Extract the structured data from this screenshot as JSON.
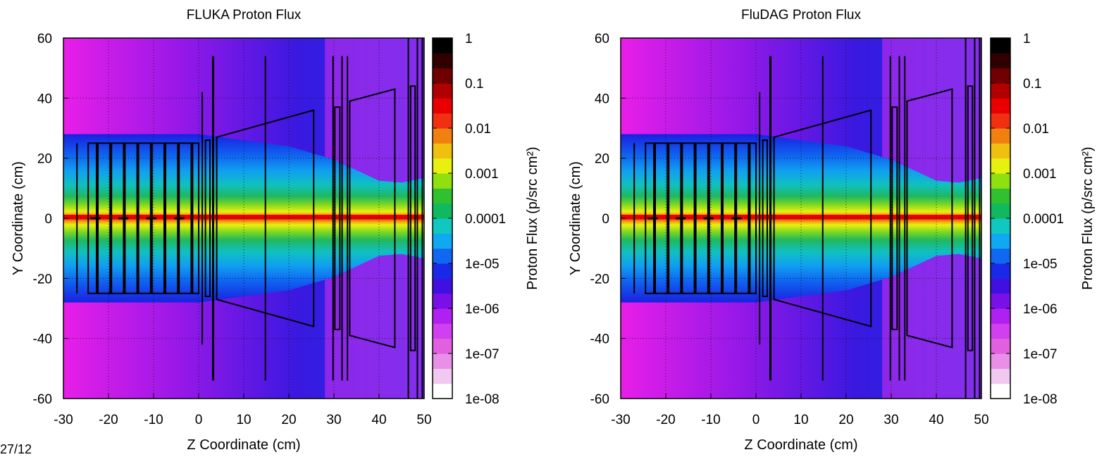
{
  "colors": {
    "scale": [
      "#ffffff",
      "#f0c8f0",
      "#e890e8",
      "#e060e0",
      "#d040f0",
      "#b020f0",
      "#7a10e8",
      "#4010e0",
      "#1a28e8",
      "#1068f0",
      "#10a8f0",
      "#10c8c0",
      "#10b860",
      "#30c030",
      "#90e010",
      "#e8f010",
      "#f0c010",
      "#f08010",
      "#f03010",
      "#e80000",
      "#b00000",
      "#700000",
      "#300000",
      "#000000"
    ]
  },
  "chart_data": [
    {
      "type": "heatmap",
      "title": "FLUKA Proton Flux",
      "xlabel": "Z Coordinate (cm)",
      "ylabel": "Y Coordinate (cm)",
      "colorbar_label": "Proton Flux (p/src cm²)",
      "xlim": [
        -30,
        50
      ],
      "ylim": [
        -60,
        60
      ],
      "xticks": [
        "-30",
        "-20",
        "-10",
        "0",
        "10",
        "20",
        "30",
        "40",
        "50"
      ],
      "yticks": [
        "60",
        "40",
        "20",
        "0",
        "-20",
        "-40",
        "-60"
      ],
      "colorbar_ticks": [
        "1",
        "0.1",
        "0.01",
        "0.001",
        "0.0001",
        "1e-05",
        "1e-06",
        "1e-07",
        "1e-08"
      ],
      "colorbar_range": [
        1e-08,
        1
      ],
      "colorbar_scale": "log",
      "grid": true
    },
    {
      "type": "heatmap",
      "title": "FluDAG Proton Flux",
      "xlabel": "Z Coordinate (cm)",
      "ylabel": "Y Coordinate (cm)",
      "colorbar_label": "Proton Flux (p/src cm²)",
      "xlim": [
        -30,
        50
      ],
      "ylim": [
        -60,
        60
      ],
      "xticks": [
        "-30",
        "-20",
        "-10",
        "0",
        "10",
        "20",
        "30",
        "40",
        "50"
      ],
      "yticks": [
        "60",
        "40",
        "20",
        "0",
        "-20",
        "-40",
        "-60"
      ],
      "colorbar_ticks": [
        "1",
        "0.1",
        "0.01",
        "0.001",
        "0.0001",
        "1e-05",
        "1e-06",
        "1e-07",
        "1e-08"
      ],
      "colorbar_range": [
        1e-08,
        1
      ],
      "colorbar_scale": "log",
      "grid": true
    }
  ],
  "footer_text": "27/12"
}
